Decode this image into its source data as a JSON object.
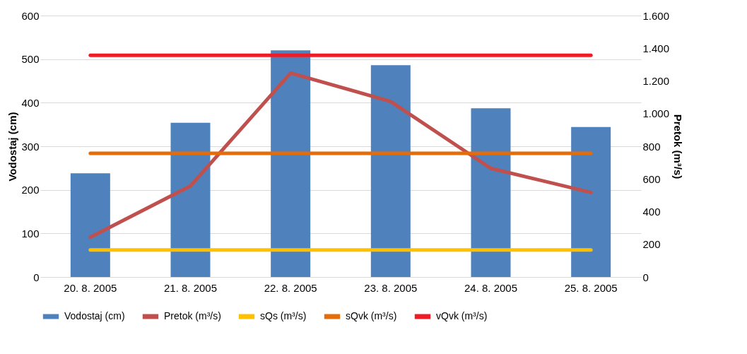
{
  "chart_data": {
    "type": "bar",
    "categories": [
      "20. 8. 2005",
      "21. 8. 2005",
      "22. 8. 2005",
      "23. 8. 2005",
      "24. 8. 2005",
      "25. 8. 2005"
    ],
    "ylabel": "Vodostaj (cm)",
    "y2label": "Pretok (m³/s)",
    "ylim": [
      0,
      600
    ],
    "yticks": [
      0,
      100,
      200,
      300,
      400,
      500,
      600
    ],
    "y2lim": [
      0,
      1600
    ],
    "y2ticks": [
      0,
      200,
      400,
      600,
      800,
      {
        "value": 1000,
        "label": "1.000"
      },
      {
        "value": 1200,
        "label": "1.200"
      },
      {
        "value": 1400,
        "label": "1.400"
      },
      {
        "value": 1600,
        "label": "1.600"
      }
    ],
    "grid": "y",
    "legend": "bottom",
    "series": [
      {
        "name": "Vodostaj (cm)",
        "color": "#4f81bd",
        "values": [
          238,
          354,
          520,
          486,
          387,
          344
        ]
      },
      {
        "name": "Pretok (m³/s)",
        "type": "line",
        "axis": "y2",
        "color": "#c0504d",
        "values": [
          243,
          557,
          1248,
          1074,
          665,
          517
        ]
      },
      {
        "name": "sQs (m³/s)",
        "type": "line",
        "axis": "y2",
        "color": "#ffc000",
        "values": [
          165,
          165,
          165,
          165,
          165,
          165
        ]
      },
      {
        "name": "sQvk (m³/s)",
        "type": "line",
        "axis": "y2",
        "color": "#e46c0a",
        "values": [
          757,
          757,
          757,
          757,
          757,
          757
        ]
      },
      {
        "name": "vQvk (m³/s)",
        "type": "line",
        "axis": "y2",
        "color": "#ee1c25",
        "values": [
          1357,
          1357,
          1357,
          1357,
          1357,
          1357
        ]
      }
    ]
  }
}
